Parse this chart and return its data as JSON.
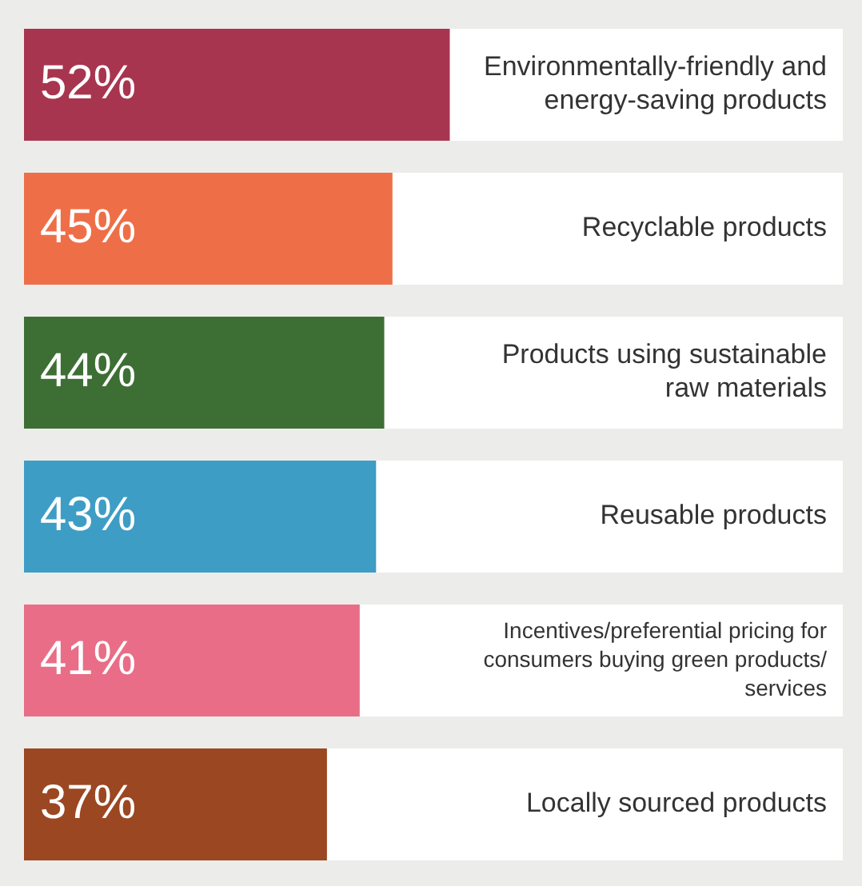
{
  "chart_data": {
    "type": "bar",
    "orientation": "horizontal",
    "categories": [
      "Environmentally-friendly and energy-saving products",
      "Recyclable products",
      "Products using sustainable raw materials",
      "Reusable products",
      "Incentives/preferential pricing for consumers buying green products/ services",
      "Locally sourced products"
    ],
    "values": [
      52,
      45,
      44,
      43,
      41,
      37
    ],
    "colors": [
      "#a8354f",
      "#ee6f47",
      "#3d6f35",
      "#3e9dc4",
      "#e96d87",
      "#9b4722"
    ],
    "value_labels": [
      "52%",
      "45%",
      "44%",
      "43%",
      "41%",
      "37%"
    ],
    "legend": false
  }
}
